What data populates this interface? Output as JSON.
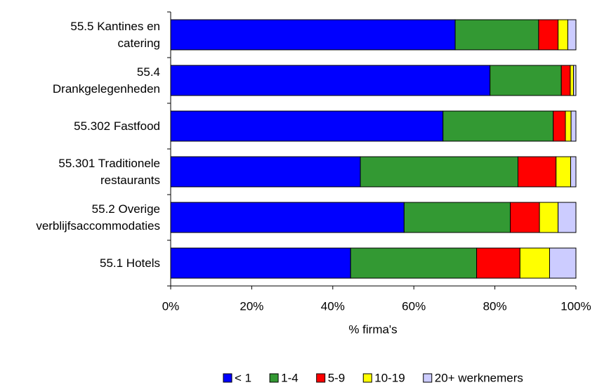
{
  "chart_data": {
    "type": "stacked_barh",
    "xlabel": "% firma's",
    "categories": [
      "55.5 Kantines en\ncatering",
      "55.4\nDrankgelegenheden",
      "55.302 Fastfood",
      "55.301 Traditionele\nrestaurants",
      "55.2 Overige\nverblijfsaccommodaties",
      "55.1 Hotels"
    ],
    "series": [
      {
        "name": "< 1",
        "color": "#0000ff",
        "values": [
          70.2,
          78.8,
          67.2,
          46.8,
          57.6,
          44.4
        ]
      },
      {
        "name": "1-4",
        "color": "#339933",
        "values": [
          20.6,
          17.6,
          27.2,
          38.9,
          26.2,
          31.1
        ]
      },
      {
        "name": "5-9",
        "color": "#ff0000",
        "values": [
          4.8,
          2.2,
          3.0,
          9.4,
          7.2,
          10.7
        ]
      },
      {
        "name": "10-19",
        "color": "#ffff00",
        "values": [
          2.4,
          0.8,
          1.4,
          3.6,
          4.6,
          7.3
        ]
      },
      {
        "name": "20+  werknemers",
        "color": "#ccccff",
        "values": [
          2.0,
          0.6,
          1.2,
          1.3,
          4.4,
          6.5
        ]
      }
    ],
    "xlim": [
      0,
      100
    ],
    "xticks": [
      {
        "value": 0,
        "label": "0%"
      },
      {
        "value": 20,
        "label": "20%"
      },
      {
        "value": 40,
        "label": "40%"
      },
      {
        "value": 60,
        "label": "60%"
      },
      {
        "value": 80,
        "label": "80%"
      },
      {
        "value": 100,
        "label": "100%"
      }
    ],
    "legend": "bottom"
  }
}
